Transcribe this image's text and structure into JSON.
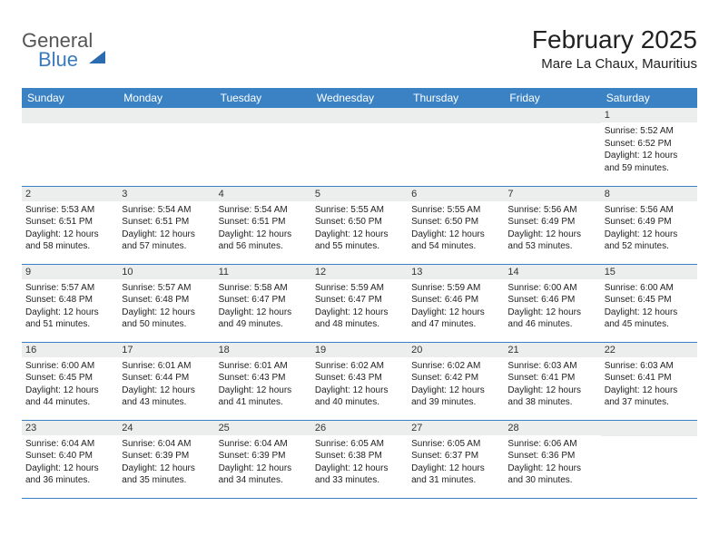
{
  "brand": {
    "part1": "General",
    "part2": "Blue"
  },
  "title": "February 2025",
  "location": "Mare La Chaux, Mauritius",
  "colors": {
    "header_bg": "#3b82c4",
    "header_text": "#ffffff",
    "daynum_bg": "#eceded",
    "rule": "#3b82c4",
    "logo_gray": "#555555",
    "logo_blue": "#3a7bbf"
  },
  "weekdays": [
    "Sunday",
    "Monday",
    "Tuesday",
    "Wednesday",
    "Thursday",
    "Friday",
    "Saturday"
  ],
  "weeks": [
    [
      null,
      null,
      null,
      null,
      null,
      null,
      {
        "n": "1",
        "sr": "Sunrise: 5:52 AM",
        "ss": "Sunset: 6:52 PM",
        "dl": "Daylight: 12 hours and 59 minutes."
      }
    ],
    [
      {
        "n": "2",
        "sr": "Sunrise: 5:53 AM",
        "ss": "Sunset: 6:51 PM",
        "dl": "Daylight: 12 hours and 58 minutes."
      },
      {
        "n": "3",
        "sr": "Sunrise: 5:54 AM",
        "ss": "Sunset: 6:51 PM",
        "dl": "Daylight: 12 hours and 57 minutes."
      },
      {
        "n": "4",
        "sr": "Sunrise: 5:54 AM",
        "ss": "Sunset: 6:51 PM",
        "dl": "Daylight: 12 hours and 56 minutes."
      },
      {
        "n": "5",
        "sr": "Sunrise: 5:55 AM",
        "ss": "Sunset: 6:50 PM",
        "dl": "Daylight: 12 hours and 55 minutes."
      },
      {
        "n": "6",
        "sr": "Sunrise: 5:55 AM",
        "ss": "Sunset: 6:50 PM",
        "dl": "Daylight: 12 hours and 54 minutes."
      },
      {
        "n": "7",
        "sr": "Sunrise: 5:56 AM",
        "ss": "Sunset: 6:49 PM",
        "dl": "Daylight: 12 hours and 53 minutes."
      },
      {
        "n": "8",
        "sr": "Sunrise: 5:56 AM",
        "ss": "Sunset: 6:49 PM",
        "dl": "Daylight: 12 hours and 52 minutes."
      }
    ],
    [
      {
        "n": "9",
        "sr": "Sunrise: 5:57 AM",
        "ss": "Sunset: 6:48 PM",
        "dl": "Daylight: 12 hours and 51 minutes."
      },
      {
        "n": "10",
        "sr": "Sunrise: 5:57 AM",
        "ss": "Sunset: 6:48 PM",
        "dl": "Daylight: 12 hours and 50 minutes."
      },
      {
        "n": "11",
        "sr": "Sunrise: 5:58 AM",
        "ss": "Sunset: 6:47 PM",
        "dl": "Daylight: 12 hours and 49 minutes."
      },
      {
        "n": "12",
        "sr": "Sunrise: 5:59 AM",
        "ss": "Sunset: 6:47 PM",
        "dl": "Daylight: 12 hours and 48 minutes."
      },
      {
        "n": "13",
        "sr": "Sunrise: 5:59 AM",
        "ss": "Sunset: 6:46 PM",
        "dl": "Daylight: 12 hours and 47 minutes."
      },
      {
        "n": "14",
        "sr": "Sunrise: 6:00 AM",
        "ss": "Sunset: 6:46 PM",
        "dl": "Daylight: 12 hours and 46 minutes."
      },
      {
        "n": "15",
        "sr": "Sunrise: 6:00 AM",
        "ss": "Sunset: 6:45 PM",
        "dl": "Daylight: 12 hours and 45 minutes."
      }
    ],
    [
      {
        "n": "16",
        "sr": "Sunrise: 6:00 AM",
        "ss": "Sunset: 6:45 PM",
        "dl": "Daylight: 12 hours and 44 minutes."
      },
      {
        "n": "17",
        "sr": "Sunrise: 6:01 AM",
        "ss": "Sunset: 6:44 PM",
        "dl": "Daylight: 12 hours and 43 minutes."
      },
      {
        "n": "18",
        "sr": "Sunrise: 6:01 AM",
        "ss": "Sunset: 6:43 PM",
        "dl": "Daylight: 12 hours and 41 minutes."
      },
      {
        "n": "19",
        "sr": "Sunrise: 6:02 AM",
        "ss": "Sunset: 6:43 PM",
        "dl": "Daylight: 12 hours and 40 minutes."
      },
      {
        "n": "20",
        "sr": "Sunrise: 6:02 AM",
        "ss": "Sunset: 6:42 PM",
        "dl": "Daylight: 12 hours and 39 minutes."
      },
      {
        "n": "21",
        "sr": "Sunrise: 6:03 AM",
        "ss": "Sunset: 6:41 PM",
        "dl": "Daylight: 12 hours and 38 minutes."
      },
      {
        "n": "22",
        "sr": "Sunrise: 6:03 AM",
        "ss": "Sunset: 6:41 PM",
        "dl": "Daylight: 12 hours and 37 minutes."
      }
    ],
    [
      {
        "n": "23",
        "sr": "Sunrise: 6:04 AM",
        "ss": "Sunset: 6:40 PM",
        "dl": "Daylight: 12 hours and 36 minutes."
      },
      {
        "n": "24",
        "sr": "Sunrise: 6:04 AM",
        "ss": "Sunset: 6:39 PM",
        "dl": "Daylight: 12 hours and 35 minutes."
      },
      {
        "n": "25",
        "sr": "Sunrise: 6:04 AM",
        "ss": "Sunset: 6:39 PM",
        "dl": "Daylight: 12 hours and 34 minutes."
      },
      {
        "n": "26",
        "sr": "Sunrise: 6:05 AM",
        "ss": "Sunset: 6:38 PM",
        "dl": "Daylight: 12 hours and 33 minutes."
      },
      {
        "n": "27",
        "sr": "Sunrise: 6:05 AM",
        "ss": "Sunset: 6:37 PM",
        "dl": "Daylight: 12 hours and 31 minutes."
      },
      {
        "n": "28",
        "sr": "Sunrise: 6:06 AM",
        "ss": "Sunset: 6:36 PM",
        "dl": "Daylight: 12 hours and 30 minutes."
      },
      null
    ]
  ]
}
